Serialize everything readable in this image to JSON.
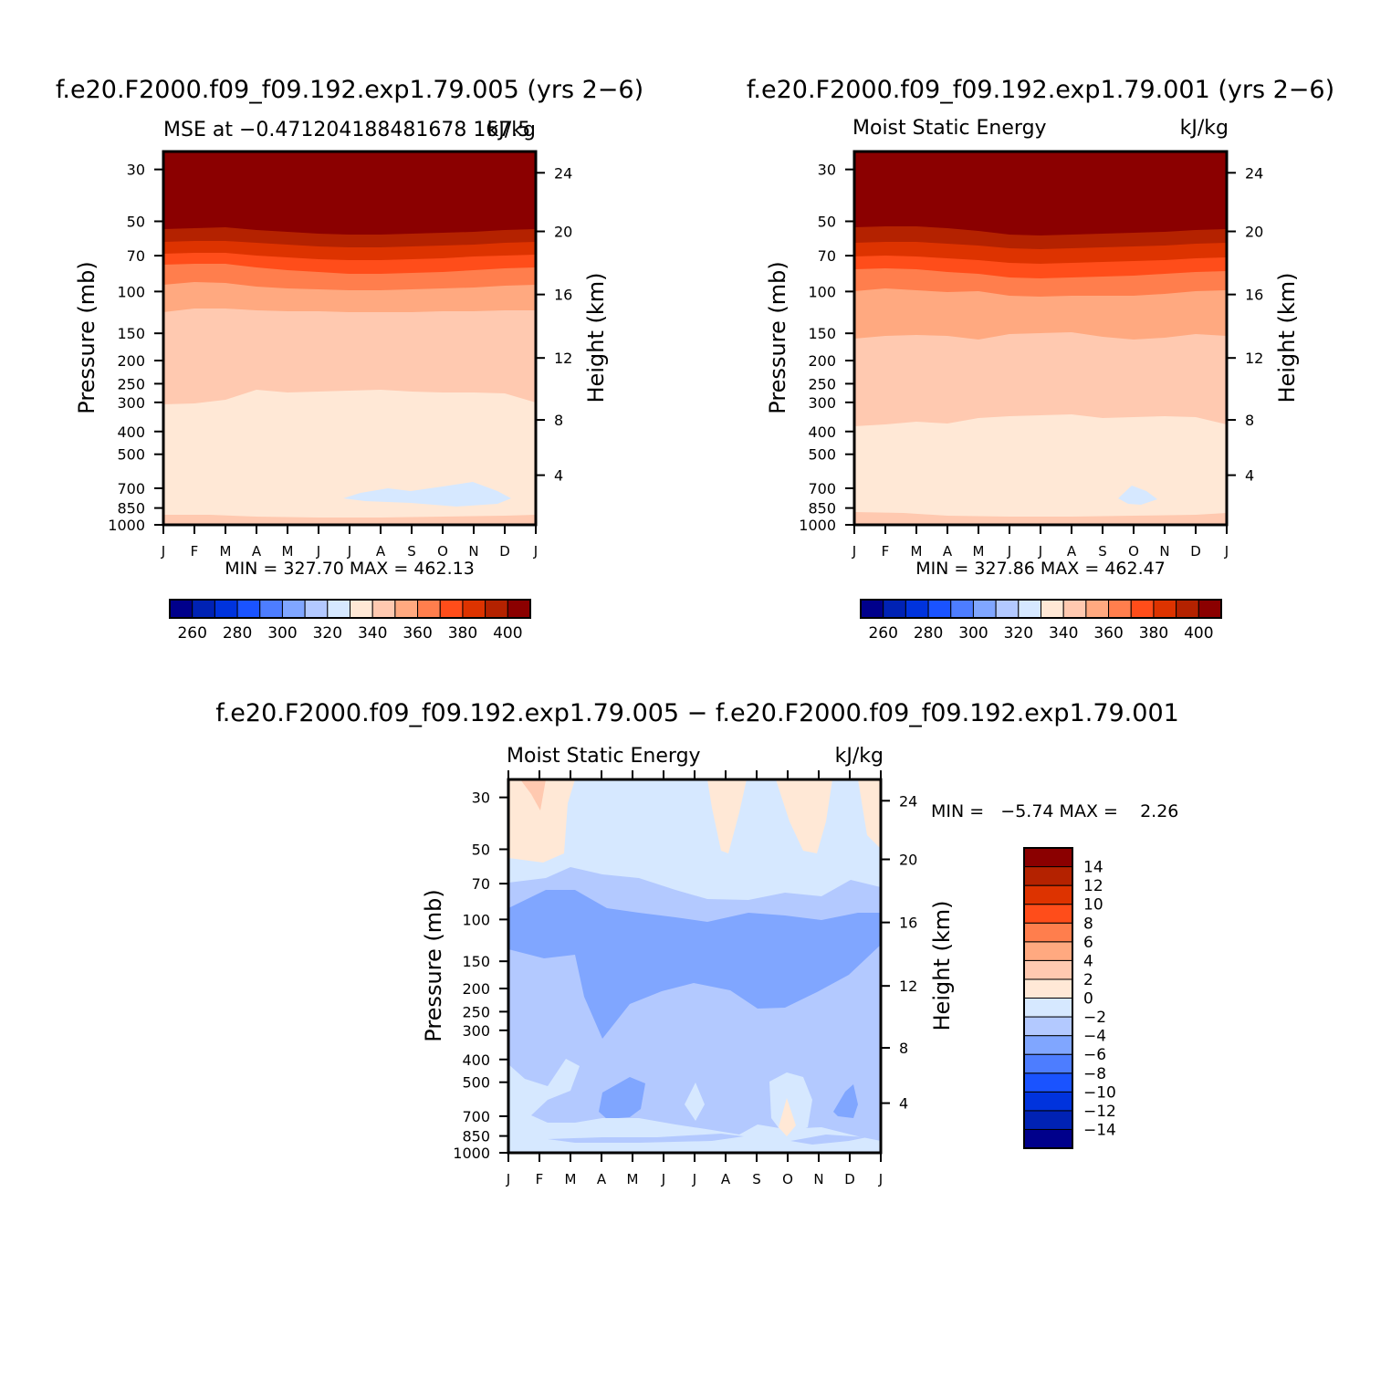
{
  "months": [
    "J",
    "F",
    "M",
    "A",
    "M",
    "J",
    "J",
    "A",
    "S",
    "O",
    "N",
    "D",
    "J"
  ],
  "pressure_ticks": [
    "30",
    "50",
    "70",
    "100",
    "150",
    "200",
    "250",
    "300",
    "400",
    "500",
    "700",
    "850",
    "1000"
  ],
  "height_ticks": [
    "24",
    "20",
    "16",
    "12",
    "8",
    "4"
  ],
  "panels": [
    {
      "case_title": "f.e20.F2000.f09_f09.192.exp1.79.005 (yrs 2−6)",
      "subtitle_left": "MSE at −0.471204188481678 167.5",
      "subtitle_right": "kJ/kg",
      "ylabel": "Pressure (mb)",
      "y2label": "Height (km)",
      "stats": "MIN = 327.70 MAX = 462.13"
    },
    {
      "case_title": "f.e20.F2000.f09_f09.192.exp1.79.001 (yrs 2−6)",
      "subtitle_left": "Moist Static Energy",
      "subtitle_right": "kJ/kg",
      "ylabel": "Pressure (mb)",
      "y2label": "Height (km)",
      "stats": "MIN = 327.86 MAX = 462.47"
    },
    {
      "case_title": "f.e20.F2000.f09_f09.192.exp1.79.005 − f.e20.F2000.f09_f09.192.exp1.79.001",
      "subtitle_left": "Moist Static Energy",
      "subtitle_right": "kJ/kg",
      "ylabel": "Pressure (mb)",
      "y2label": "Height (km)",
      "stats": "MIN =   −5.74 MAX =    2.26"
    }
  ],
  "colorbar_mse": {
    "colors": [
      "#00008b",
      "#0022b4",
      "#0033dd",
      "#1a53ff",
      "#4d7dff",
      "#80a6ff",
      "#b3c9ff",
      "#d6e8ff",
      "#ffe8d6",
      "#ffc9b0",
      "#ffa980",
      "#ff7e4d",
      "#ff4d1a",
      "#dd3300",
      "#b42200",
      "#8b0000"
    ],
    "labels": [
      "260",
      "280",
      "300",
      "320",
      "340",
      "360",
      "380",
      "400"
    ]
  },
  "colorbar_diff": {
    "colors": [
      "#00008b",
      "#0022b4",
      "#0033dd",
      "#1a53ff",
      "#4d7dff",
      "#80a6ff",
      "#b3c9ff",
      "#d6e8ff",
      "#ffe8d6",
      "#ffc9b0",
      "#ffa980",
      "#ff7e4d",
      "#ff4d1a",
      "#dd3300",
      "#b42200",
      "#8b0000"
    ],
    "labels": [
      "14",
      "12",
      "10",
      "8",
      "6",
      "4",
      "2",
      "0",
      "−2",
      "−4",
      "−6",
      "−8",
      "−10",
      "−12",
      "−14"
    ]
  },
  "chart_data": [
    {
      "type": "heatmap",
      "title": "f.e20.F2000.f09_f09.192.exp1.79.005 (yrs 2−6)",
      "subtitle": "MSE at −0.471204188481678 167.5",
      "units": "kJ/kg",
      "x": [
        "J",
        "F",
        "M",
        "A",
        "M",
        "J",
        "J",
        "A",
        "S",
        "O",
        "N",
        "D",
        "J"
      ],
      "y_pressure_mb": [
        30,
        50,
        70,
        100,
        150,
        200,
        250,
        300,
        400,
        500,
        700,
        850,
        1000
      ],
      "y2_height_km": [
        24,
        20,
        16,
        12,
        8,
        4
      ],
      "ylabel": "Pressure (mb)",
      "y2label": "Height (km)",
      "min": 327.7,
      "max": 462.13,
      "contour_levels": [
        260,
        270,
        280,
        290,
        300,
        310,
        320,
        330,
        340,
        350,
        360,
        370,
        380,
        390,
        400
      ],
      "bands_pressure_mb": [
        {
          "range": "above 55 mb",
          "value_range": "> 400"
        },
        {
          "range": "55-63 mb",
          "value_range": "390-400"
        },
        {
          "range": "63-72 mb",
          "value_range": "380-390"
        },
        {
          "range": "72-84 mb",
          "value_range": "370-380"
        },
        {
          "range": "84-100 mb",
          "value_range": "360-370"
        },
        {
          "range": "100-125 mb",
          "value_range": "350-360"
        },
        {
          "range": "125-300 mb",
          "value_range": "340-350"
        },
        {
          "range": "300-950 mb",
          "value_range": "330-340"
        },
        {
          "range": "near 750 mb, Jul-Dec",
          "value_range": "320-330"
        },
        {
          "range": "950-1000 mb",
          "value_range": "340-350"
        }
      ]
    },
    {
      "type": "heatmap",
      "title": "f.e20.F2000.f09_f09.192.exp1.79.001 (yrs 2−6)",
      "subtitle": "Moist Static Energy",
      "units": "kJ/kg",
      "x": [
        "J",
        "F",
        "M",
        "A",
        "M",
        "J",
        "J",
        "A",
        "S",
        "O",
        "N",
        "D",
        "J"
      ],
      "y_pressure_mb": [
        30,
        50,
        70,
        100,
        150,
        200,
        250,
        300,
        400,
        500,
        700,
        850,
        1000
      ],
      "y2_height_km": [
        24,
        20,
        16,
        12,
        8,
        4
      ],
      "ylabel": "Pressure (mb)",
      "y2label": "Height (km)",
      "min": 327.86,
      "max": 462.47,
      "contour_levels": [
        260,
        270,
        280,
        290,
        300,
        310,
        320,
        330,
        340,
        350,
        360,
        370,
        380,
        390,
        400
      ],
      "bands_pressure_mb": [
        {
          "range": "above 53 mb",
          "value_range": "> 400"
        },
        {
          "range": "53-63 mb",
          "value_range": "390-400"
        },
        {
          "range": "63-72 mb",
          "value_range": "380-390"
        },
        {
          "range": "72-85 mb",
          "value_range": "370-380"
        },
        {
          "range": "85-105 mb",
          "value_range": "360-370"
        },
        {
          "range": "105-165 mb",
          "value_range": "350-360"
        },
        {
          "range": "165-380 mb",
          "value_range": "340-350"
        },
        {
          "range": "380-950 mb",
          "value_range": "330-340"
        },
        {
          "range": "near 750 mb, Oct",
          "value_range": "320-330"
        },
        {
          "range": "950-1000 mb",
          "value_range": "340-350"
        }
      ]
    },
    {
      "type": "heatmap",
      "title": "f.e20.F2000.f09_f09.192.exp1.79.005 − f.e20.F2000.f09_f09.192.exp1.79.001",
      "subtitle": "Moist Static Energy",
      "units": "kJ/kg",
      "x": [
        "J",
        "F",
        "M",
        "A",
        "M",
        "J",
        "J",
        "A",
        "S",
        "O",
        "N",
        "D",
        "J"
      ],
      "y_pressure_mb": [
        30,
        50,
        70,
        100,
        150,
        200,
        250,
        300,
        400,
        500,
        700,
        850,
        1000
      ],
      "y2_height_km": [
        24,
        20,
        16,
        12,
        8,
        4
      ],
      "ylabel": "Pressure (mb)",
      "y2label": "Height (km)",
      "min": -5.74,
      "max": 2.26,
      "contour_levels": [
        -14,
        -12,
        -10,
        -8,
        -6,
        -4,
        -2,
        0,
        2,
        4,
        6,
        8,
        10,
        12,
        14
      ]
    }
  ]
}
